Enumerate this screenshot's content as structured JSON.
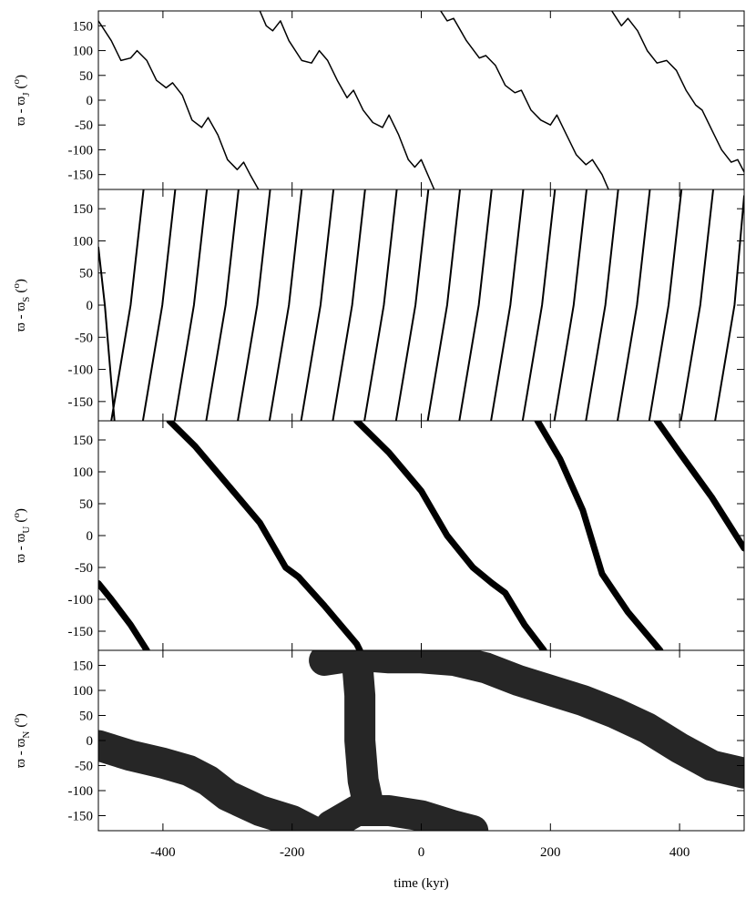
{
  "chart_data": [
    {
      "type": "line",
      "ylabel": {
        "main": "ϖ - ϖ",
        "sub": "J",
        "unit": [
          "(",
          "o",
          ")"
        ]
      },
      "xlim": [
        -500,
        500
      ],
      "ylim": [
        -180,
        180
      ],
      "yticks": [
        150,
        100,
        50,
        0,
        -50,
        -100,
        -150
      ],
      "line_width": 1.5,
      "series": [
        {
          "color": "#000000",
          "x": [
            -500,
            -480,
            -465,
            -450,
            -440,
            -425,
            -410,
            -395,
            -385,
            -370,
            -355,
            -340,
            -330,
            -315,
            -300,
            -285,
            -275,
            -265,
            -252,
            null,
            -250,
            -240,
            -230,
            -218,
            -205,
            -185,
            -170,
            -158,
            -145,
            -130,
            -115,
            -105,
            -90,
            -75,
            -60,
            -50,
            -35,
            -20,
            -10,
            0,
            10,
            20,
            null,
            30,
            40,
            50,
            70,
            90,
            100,
            115,
            130,
            145,
            155,
            170,
            185,
            200,
            210,
            225,
            240,
            255,
            265,
            280,
            290,
            null,
            295,
            310,
            320,
            335,
            350,
            365,
            380,
            395,
            410,
            425,
            435,
            450,
            465,
            480,
            490,
            500
          ],
          "values": [
            160,
            120,
            80,
            85,
            100,
            80,
            40,
            25,
            35,
            10,
            -40,
            -55,
            -35,
            -70,
            -120,
            -140,
            -125,
            -150,
            -180,
            null,
            180,
            150,
            140,
            160,
            120,
            80,
            75,
            100,
            80,
            40,
            5,
            20,
            -20,
            -45,
            -55,
            -30,
            -70,
            -120,
            -135,
            -120,
            -150,
            -180,
            null,
            180,
            160,
            165,
            120,
            85,
            90,
            70,
            30,
            15,
            20,
            -20,
            -40,
            -50,
            -30,
            -70,
            -110,
            -130,
            -120,
            -150,
            -180,
            null,
            180,
            150,
            165,
            140,
            100,
            75,
            80,
            60,
            20,
            -10,
            -20,
            -60,
            -100,
            -125,
            -120,
            -145
          ]
        }
      ]
    },
    {
      "type": "line",
      "ylabel": {
        "main": "ϖ - ϖ",
        "sub": "S",
        "unit": [
          "(",
          "o",
          ")"
        ]
      },
      "xlim": [
        -500,
        500
      ],
      "ylim": [
        -180,
        180
      ],
      "yticks": [
        150,
        100,
        50,
        0,
        -50,
        -100,
        -150
      ],
      "line_width": 2,
      "series": [
        {
          "color": "#000000",
          "x": [
            -500,
            -490,
            -475,
            null,
            -430,
            -450,
            -480,
            null,
            -381,
            -401,
            -431,
            null,
            -332,
            -352,
            -382,
            null,
            -283,
            -303,
            -333,
            null,
            -234,
            -254,
            -284,
            null,
            -185,
            -205,
            -235,
            null,
            -136,
            -156,
            -186,
            null,
            -87,
            -107,
            -137,
            null,
            -38,
            -58,
            -88,
            null,
            11,
            -9,
            -39,
            null,
            60,
            40,
            10,
            null,
            109,
            89,
            59,
            null,
            158,
            138,
            108,
            null,
            207,
            187,
            157,
            null,
            256,
            236,
            206,
            null,
            305,
            285,
            255,
            null,
            354,
            334,
            304,
            null,
            403,
            383,
            353,
            null,
            452,
            432,
            402,
            null,
            500,
            485,
            455
          ],
          "values": [
            90,
            0,
            -180,
            null,
            180,
            0,
            -180,
            null,
            180,
            0,
            -180,
            null,
            180,
            0,
            -180,
            null,
            180,
            0,
            -180,
            null,
            180,
            0,
            -180,
            null,
            180,
            0,
            -180,
            null,
            180,
            0,
            -180,
            null,
            180,
            0,
            -180,
            null,
            180,
            0,
            -180,
            null,
            180,
            0,
            -180,
            null,
            180,
            0,
            -180,
            null,
            180,
            0,
            -180,
            null,
            180,
            0,
            -180,
            null,
            180,
            0,
            -180,
            null,
            180,
            0,
            -180,
            null,
            180,
            0,
            -180,
            null,
            180,
            0,
            -180,
            null,
            180,
            0,
            -180,
            null,
            180,
            0,
            -180,
            null,
            170,
            0,
            -180
          ]
        }
      ]
    },
    {
      "type": "line",
      "ylabel": {
        "main": "ϖ - ϖ",
        "sub": "U",
        "unit": [
          "(",
          "o",
          ")"
        ]
      },
      "xlim": [
        -500,
        500
      ],
      "ylim": [
        -180,
        180
      ],
      "yticks": [
        150,
        100,
        50,
        0,
        -50,
        -100,
        -150
      ],
      "line_width": 7,
      "series": [
        {
          "color": "#000000",
          "x": [
            -500,
            -480,
            -450,
            -425,
            null,
            -390,
            -350,
            -300,
            -250,
            -210,
            -190,
            -150,
            -100,
            -95,
            null,
            -100,
            -50,
            0,
            40,
            80,
            110,
            130,
            160,
            190,
            null,
            180,
            215,
            250,
            280,
            320,
            370,
            null,
            365,
            400,
            450,
            500
          ],
          "values": [
            -75,
            -100,
            -140,
            -180,
            null,
            180,
            140,
            80,
            20,
            -50,
            -65,
            -110,
            -170,
            -180,
            null,
            180,
            130,
            70,
            0,
            -50,
            -75,
            -90,
            -140,
            -180,
            null,
            180,
            120,
            40,
            -60,
            -120,
            -180,
            null,
            180,
            130,
            60,
            -20
          ]
        }
      ]
    },
    {
      "type": "line",
      "ylabel": {
        "main": "ϖ - ϖ",
        "sub": "N",
        "unit": [
          "(",
          "o",
          ")"
        ]
      },
      "xlim": [
        -500,
        500
      ],
      "ylim": [
        -180,
        180
      ],
      "yticks": [
        150,
        100,
        50,
        0,
        -50,
        -100,
        -150
      ],
      "line_width": 34,
      "xticks": [
        -400,
        -200,
        0,
        200,
        400
      ],
      "xlabel": "time (kyr)",
      "series": [
        {
          "color": "#000000",
          "x": [
            -500,
            -450,
            -400,
            -360,
            -330,
            -300,
            -250,
            -200,
            -170,
            null,
            -150,
            -100,
            -50,
            0,
            50,
            100,
            150,
            200,
            250,
            300,
            350,
            400,
            450,
            500,
            null,
            -140,
            -100,
            -50,
            0,
            50,
            80,
            null,
            -100,
            -95,
            -95,
            -90,
            -80
          ],
          "values": [
            -10,
            -30,
            -45,
            -60,
            -80,
            -110,
            -140,
            -160,
            -180,
            null,
            160,
            170,
            165,
            165,
            160,
            145,
            120,
            100,
            80,
            55,
            25,
            -15,
            -50,
            -65,
            null,
            -170,
            -140,
            -140,
            -150,
            -170,
            -180,
            null,
            170,
            90,
            0,
            -80,
            -140
          ]
        }
      ]
    }
  ]
}
